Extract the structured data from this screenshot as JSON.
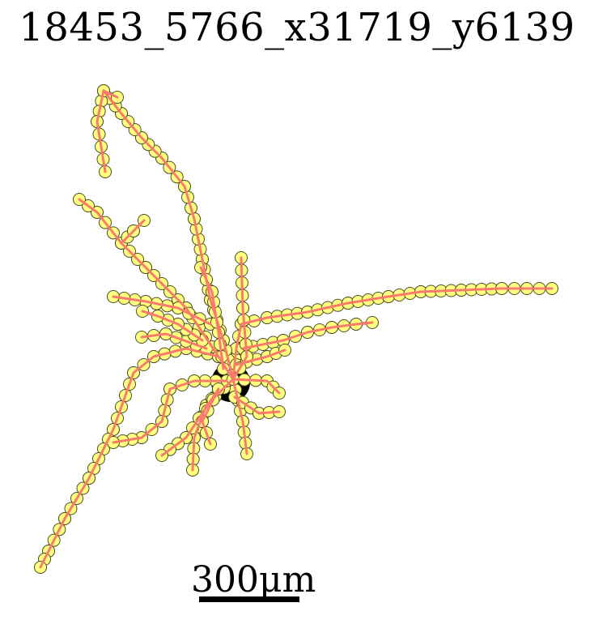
{
  "title": "18453_5766_x31719_y6139",
  "scale_bar": {
    "label": "300μm"
  },
  "colors": {
    "neurite": "#fa7a6e",
    "node_fill": "#ffff80",
    "node_stroke": "#4d4d24",
    "soma": "#000000"
  },
  "icons": {
    "soma": "filled-black-circle",
    "node": "yellow-circle-marker"
  }
}
